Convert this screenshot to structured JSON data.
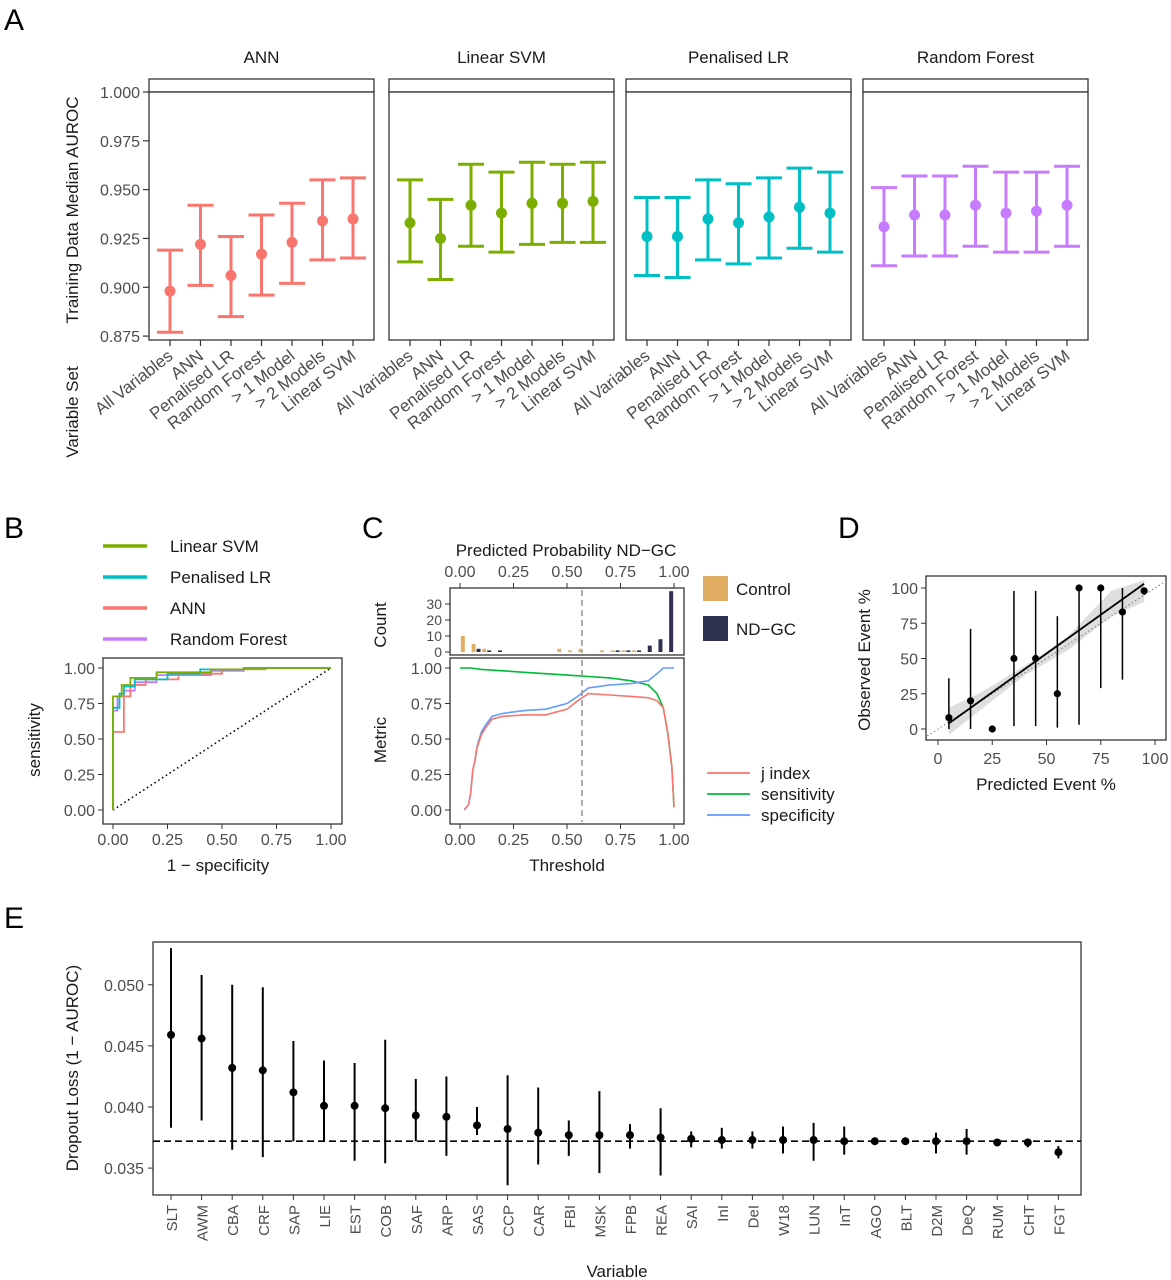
{
  "panelA": {
    "label": "A",
    "ylabel": "Training Data Median AUROC",
    "xlabel": "Variable Set",
    "ylim": [
      0.873,
      1.0
    ],
    "yticks": [
      "0.875",
      "0.900",
      "0.925",
      "0.950",
      "0.975",
      "1.000"
    ],
    "variable_sets": [
      "All Variables",
      "ANN",
      "Penalised LR",
      "Random Forest",
      "> 1 Model",
      "> 2 Models",
      "Linear SVM"
    ],
    "facets": [
      {
        "title": "ANN",
        "color": "#F8766D",
        "median": [
          0.898,
          0.922,
          0.906,
          0.917,
          0.923,
          0.934,
          0.935
        ],
        "low": [
          0.877,
          0.901,
          0.885,
          0.896,
          0.902,
          0.914,
          0.915
        ],
        "high": [
          0.919,
          0.942,
          0.926,
          0.937,
          0.943,
          0.955,
          0.956
        ]
      },
      {
        "title": "Linear SVM",
        "color": "#7CAE00",
        "median": [
          0.933,
          0.925,
          0.942,
          0.938,
          0.943,
          0.943,
          0.944
        ],
        "low": [
          0.913,
          0.904,
          0.921,
          0.918,
          0.922,
          0.923,
          0.923
        ],
        "high": [
          0.955,
          0.945,
          0.963,
          0.959,
          0.964,
          0.963,
          0.964
        ]
      },
      {
        "title": "Penalised LR",
        "color": "#00BFC4",
        "median": [
          0.926,
          0.926,
          0.935,
          0.933,
          0.936,
          0.941,
          0.938
        ],
        "low": [
          0.906,
          0.905,
          0.914,
          0.912,
          0.915,
          0.92,
          0.918
        ],
        "high": [
          0.946,
          0.946,
          0.955,
          0.953,
          0.956,
          0.961,
          0.959
        ]
      },
      {
        "title": "Random Forest",
        "color": "#C77CFF",
        "median": [
          0.931,
          0.937,
          0.937,
          0.942,
          0.938,
          0.939,
          0.942
        ],
        "low": [
          0.911,
          0.916,
          0.916,
          0.921,
          0.918,
          0.918,
          0.921
        ],
        "high": [
          0.951,
          0.957,
          0.957,
          0.962,
          0.959,
          0.959,
          0.962
        ]
      }
    ]
  },
  "panelB": {
    "label": "B",
    "xlabel": "1 − specificity",
    "ylabel": "sensitivity",
    "xticks": [
      "0.00",
      "0.25",
      "0.50",
      "0.75",
      "1.00"
    ],
    "yticks": [
      "0.00",
      "0.25",
      "0.50",
      "0.75",
      "1.00"
    ],
    "legend": [
      {
        "name": "Linear SVM",
        "color": "#7CAE00"
      },
      {
        "name": "Penalised LR",
        "color": "#00BFC4"
      },
      {
        "name": "ANN",
        "color": "#F8766D"
      },
      {
        "name": "Random Forest",
        "color": "#C77CFF"
      }
    ],
    "curves": [
      {
        "color": "#C77CFF",
        "points": [
          [
            0,
            0
          ],
          [
            0,
            0.7
          ],
          [
            0.02,
            0.7
          ],
          [
            0.02,
            0.8
          ],
          [
            0.05,
            0.8
          ],
          [
            0.05,
            0.84
          ],
          [
            0.1,
            0.84
          ],
          [
            0.1,
            0.9
          ],
          [
            0.2,
            0.9
          ],
          [
            0.2,
            0.95
          ],
          [
            0.45,
            0.95
          ],
          [
            0.45,
            0.98
          ],
          [
            0.6,
            0.98
          ],
          [
            0.6,
            1.0
          ],
          [
            1,
            1
          ]
        ]
      },
      {
        "color": "#F8766D",
        "points": [
          [
            0,
            0
          ],
          [
            0,
            0.55
          ],
          [
            0.05,
            0.55
          ],
          [
            0.05,
            0.8
          ],
          [
            0.08,
            0.8
          ],
          [
            0.08,
            0.88
          ],
          [
            0.15,
            0.88
          ],
          [
            0.15,
            0.92
          ],
          [
            0.3,
            0.92
          ],
          [
            0.3,
            0.96
          ],
          [
            0.5,
            0.96
          ],
          [
            0.5,
            0.99
          ],
          [
            0.7,
            0.99
          ],
          [
            0.7,
            1.0
          ],
          [
            1,
            1
          ]
        ]
      },
      {
        "color": "#00BFC4",
        "points": [
          [
            0,
            0
          ],
          [
            0,
            0.72
          ],
          [
            0.03,
            0.72
          ],
          [
            0.03,
            0.82
          ],
          [
            0.05,
            0.82
          ],
          [
            0.05,
            0.87
          ],
          [
            0.1,
            0.87
          ],
          [
            0.1,
            0.92
          ],
          [
            0.25,
            0.92
          ],
          [
            0.25,
            0.96
          ],
          [
            0.4,
            0.96
          ],
          [
            0.4,
            0.99
          ],
          [
            0.6,
            0.99
          ],
          [
            0.6,
            1.0
          ],
          [
            1,
            1
          ]
        ]
      },
      {
        "color": "#7CAE00",
        "points": [
          [
            0,
            0
          ],
          [
            0,
            0.8
          ],
          [
            0.04,
            0.8
          ],
          [
            0.04,
            0.88
          ],
          [
            0.08,
            0.88
          ],
          [
            0.08,
            0.93
          ],
          [
            0.2,
            0.93
          ],
          [
            0.2,
            0.97
          ],
          [
            0.45,
            0.97
          ],
          [
            0.45,
            0.99
          ],
          [
            0.6,
            0.99
          ],
          [
            0.6,
            1.0
          ],
          [
            1,
            1
          ]
        ]
      }
    ]
  },
  "panelC": {
    "label": "C",
    "top_title": "Predicted Probability ND−GC",
    "count_label": "Count",
    "metric_label": "Metric",
    "xlabel": "Threshold",
    "xticks": [
      "0.00",
      "0.25",
      "0.50",
      "0.75",
      "1.00"
    ],
    "count_ticks": [
      "0",
      "10",
      "20",
      "30"
    ],
    "metric_ticks": [
      "0.00",
      "0.25",
      "0.50",
      "0.75",
      "1.00"
    ],
    "threshold": 0.57,
    "hist_legend": [
      {
        "name": "Control",
        "color": "#E2AE63"
      },
      {
        "name": "ND−GC",
        "color": "#2E3150"
      }
    ],
    "hist": {
      "bins": [
        0.025,
        0.075,
        0.125,
        0.175,
        0.475,
        0.525,
        0.575,
        0.675,
        0.725,
        0.775,
        0.825,
        0.875,
        0.925,
        0.975
      ],
      "control": [
        10,
        5,
        2,
        0,
        2,
        1,
        2,
        1,
        1,
        1,
        1,
        0,
        0,
        0
      ],
      "ndgc": [
        0,
        2,
        1,
        1,
        0,
        0,
        0,
        0,
        1,
        1,
        1,
        4,
        8,
        38
      ]
    },
    "metric_legend": [
      {
        "name": "j  index",
        "color": "#F8766D"
      },
      {
        "name": "sensitivity",
        "color": "#00BA38"
      },
      {
        "name": "specificity",
        "color": "#619CFF"
      }
    ],
    "sensitivity": [
      [
        0,
        1.0
      ],
      [
        0.05,
        1.0
      ],
      [
        0.1,
        0.99
      ],
      [
        0.2,
        0.98
      ],
      [
        0.3,
        0.97
      ],
      [
        0.4,
        0.96
      ],
      [
        0.5,
        0.95
      ],
      [
        0.6,
        0.94
      ],
      [
        0.7,
        0.93
      ],
      [
        0.8,
        0.91
      ],
      [
        0.88,
        0.88
      ],
      [
        0.92,
        0.82
      ],
      [
        0.95,
        0.72
      ],
      [
        0.97,
        0.55
      ],
      [
        0.99,
        0.3
      ],
      [
        1.0,
        0.02
      ]
    ],
    "specificity": [
      [
        0.02,
        0
      ],
      [
        0.04,
        0.04
      ],
      [
        0.05,
        0.12
      ],
      [
        0.06,
        0.28
      ],
      [
        0.07,
        0.35
      ],
      [
        0.08,
        0.45
      ],
      [
        0.1,
        0.55
      ],
      [
        0.12,
        0.6
      ],
      [
        0.15,
        0.66
      ],
      [
        0.2,
        0.68
      ],
      [
        0.3,
        0.7
      ],
      [
        0.4,
        0.71
      ],
      [
        0.5,
        0.75
      ],
      [
        0.55,
        0.8
      ],
      [
        0.6,
        0.86
      ],
      [
        0.7,
        0.88
      ],
      [
        0.8,
        0.89
      ],
      [
        0.88,
        0.91
      ],
      [
        0.92,
        0.96
      ],
      [
        0.95,
        1.0
      ],
      [
        1.0,
        1.0
      ]
    ],
    "jindex": [
      [
        0.02,
        0
      ],
      [
        0.04,
        0.04
      ],
      [
        0.05,
        0.12
      ],
      [
        0.06,
        0.28
      ],
      [
        0.07,
        0.35
      ],
      [
        0.08,
        0.44
      ],
      [
        0.1,
        0.53
      ],
      [
        0.12,
        0.58
      ],
      [
        0.15,
        0.64
      ],
      [
        0.2,
        0.66
      ],
      [
        0.3,
        0.67
      ],
      [
        0.4,
        0.67
      ],
      [
        0.5,
        0.71
      ],
      [
        0.55,
        0.77
      ],
      [
        0.6,
        0.82
      ],
      [
        0.7,
        0.81
      ],
      [
        0.8,
        0.8
      ],
      [
        0.88,
        0.79
      ],
      [
        0.92,
        0.77
      ],
      [
        0.95,
        0.72
      ],
      [
        0.97,
        0.55
      ],
      [
        0.99,
        0.3
      ],
      [
        1.0,
        0.02
      ]
    ]
  },
  "panelD": {
    "label": "D",
    "xlabel": "Predicted Event %",
    "ylabel": "Observed Event %",
    "xticks": [
      "0",
      "25",
      "50",
      "75",
      "100"
    ],
    "yticks": [
      "0",
      "25",
      "50",
      "75",
      "100"
    ],
    "points": [
      {
        "x": 5,
        "y": 8,
        "lo": 0,
        "hi": 36
      },
      {
        "x": 15,
        "y": 20,
        "lo": 0,
        "hi": 71
      },
      {
        "x": 25,
        "y": 0,
        "lo": 0,
        "hi": 0
      },
      {
        "x": 35,
        "y": 50,
        "lo": 2,
        "hi": 98
      },
      {
        "x": 45,
        "y": 50,
        "lo": 2,
        "hi": 98
      },
      {
        "x": 55,
        "y": 25,
        "lo": 1,
        "hi": 80
      },
      {
        "x": 65,
        "y": 100,
        "lo": 3,
        "hi": 100
      },
      {
        "x": 75,
        "y": 100,
        "lo": 29,
        "hi": 100
      },
      {
        "x": 85,
        "y": 83,
        "lo": 35,
        "hi": 100
      },
      {
        "x": 95,
        "y": 98,
        "lo": 95,
        "hi": 100
      }
    ],
    "fit": [
      [
        5,
        4
      ],
      [
        95,
        103
      ]
    ]
  },
  "panelE": {
    "label": "E",
    "ylabel": "Dropout Loss (1 − AUROC)",
    "xlabel": "Variable",
    "yticks": [
      "0.035",
      "0.040",
      "0.045",
      "0.050"
    ],
    "ylim": [
      0.0328,
      0.0535
    ],
    "baseline": 0.0372,
    "variables": [
      "SLT",
      "AWM",
      "CBA",
      "CRF",
      "SAP",
      "LIE",
      "EST",
      "COB",
      "SAF",
      "ARP",
      "SAS",
      "CCP",
      "CAR",
      "FBI",
      "MSK",
      "FPB",
      "REA",
      "SAI",
      "InI",
      "DeI",
      "W18",
      "LUN",
      "InT",
      "AGO",
      "BLT",
      "D2M",
      "DeQ",
      "RUM",
      "CHT",
      "FGT"
    ],
    "median": [
      0.0459,
      0.0456,
      0.0432,
      0.043,
      0.0412,
      0.0401,
      0.0401,
      0.0399,
      0.0393,
      0.0392,
      0.0385,
      0.0382,
      0.0379,
      0.0377,
      0.0377,
      0.0377,
      0.0375,
      0.0374,
      0.0373,
      0.0373,
      0.0373,
      0.0373,
      0.0372,
      0.0372,
      0.0372,
      0.0372,
      0.0372,
      0.0371,
      0.0371,
      0.0363
    ],
    "low": [
      0.0383,
      0.0389,
      0.0365,
      0.0359,
      0.0372,
      0.0372,
      0.0356,
      0.0354,
      0.0372,
      0.036,
      0.0377,
      0.0336,
      0.0353,
      0.036,
      0.0346,
      0.0366,
      0.0344,
      0.0367,
      0.0366,
      0.0366,
      0.0362,
      0.0356,
      0.0361,
      0.0369,
      0.0369,
      0.0362,
      0.0361,
      0.0368,
      0.0367,
      0.0358
    ],
    "high": [
      0.053,
      0.0508,
      0.05,
      0.0498,
      0.0454,
      0.0438,
      0.0436,
      0.0455,
      0.0423,
      0.0425,
      0.04,
      0.0426,
      0.0416,
      0.0389,
      0.0413,
      0.0386,
      0.0399,
      0.038,
      0.0383,
      0.038,
      0.0384,
      0.0387,
      0.0384,
      0.0374,
      0.0374,
      0.0379,
      0.0382,
      0.0373,
      0.0374,
      0.0368
    ]
  }
}
